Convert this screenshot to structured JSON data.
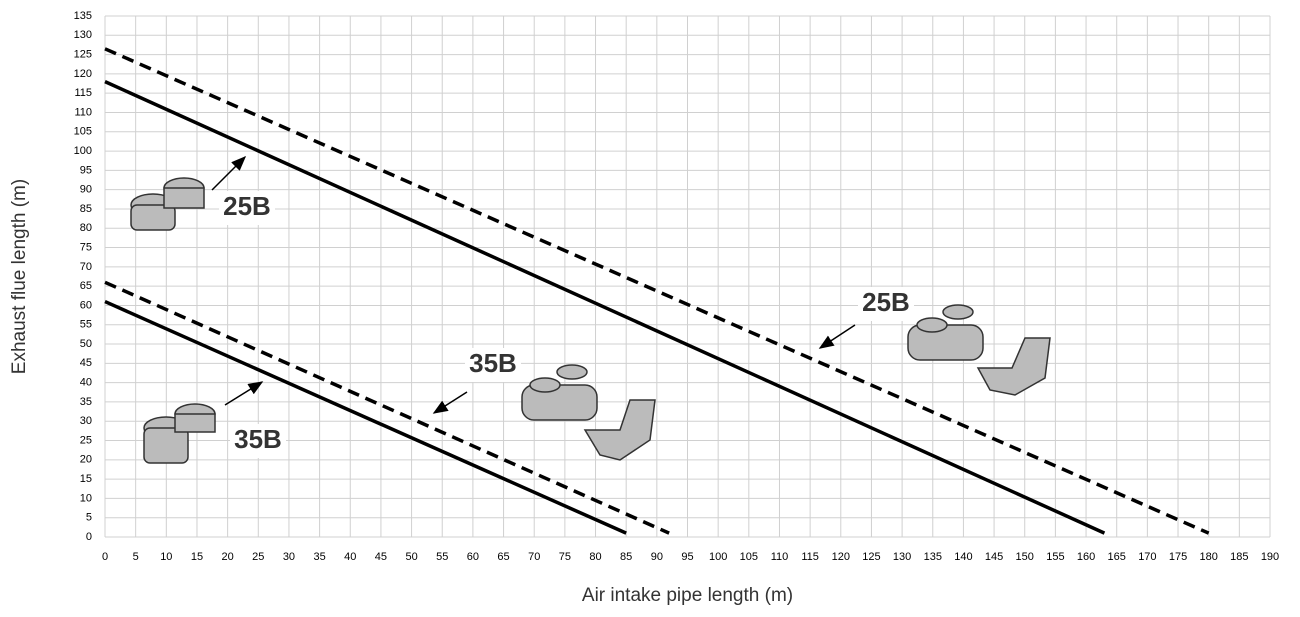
{
  "chart_data": {
    "type": "line",
    "x_label": "Air intake pipe length (m)",
    "y_label": "Exhaust flue length (m)",
    "xlim": [
      0,
      190
    ],
    "ylim": [
      0,
      135
    ],
    "xticks": [
      0,
      5,
      10,
      15,
      20,
      25,
      30,
      35,
      40,
      45,
      50,
      55,
      60,
      65,
      70,
      75,
      80,
      85,
      90,
      95,
      100,
      105,
      110,
      115,
      120,
      125,
      130,
      135,
      140,
      145,
      150,
      155,
      160,
      165,
      170,
      175,
      180,
      185,
      190
    ],
    "yticks": [
      0,
      5,
      10,
      15,
      20,
      25,
      30,
      35,
      40,
      45,
      50,
      55,
      60,
      65,
      70,
      75,
      80,
      85,
      90,
      95,
      100,
      105,
      110,
      115,
      120,
      125,
      130,
      135
    ],
    "grid": true,
    "series": [
      {
        "color": "#000000",
        "dashed": false,
        "x": [
          0,
          163
        ],
        "values": [
          118,
          1
        ]
      },
      {
        "color": "#000000",
        "dashed": true,
        "x": [
          0,
          180
        ],
        "values": [
          126.5,
          1
        ]
      },
      {
        "color": "#000000",
        "dashed": false,
        "x": [
          0,
          85
        ],
        "values": [
          61,
          1
        ]
      },
      {
        "color": "#000000",
        "dashed": true,
        "x": [
          0,
          92
        ],
        "values": [
          66,
          1
        ]
      }
    ],
    "annotations": [
      "25B",
      "25B",
      "35B",
      "35B"
    ]
  }
}
